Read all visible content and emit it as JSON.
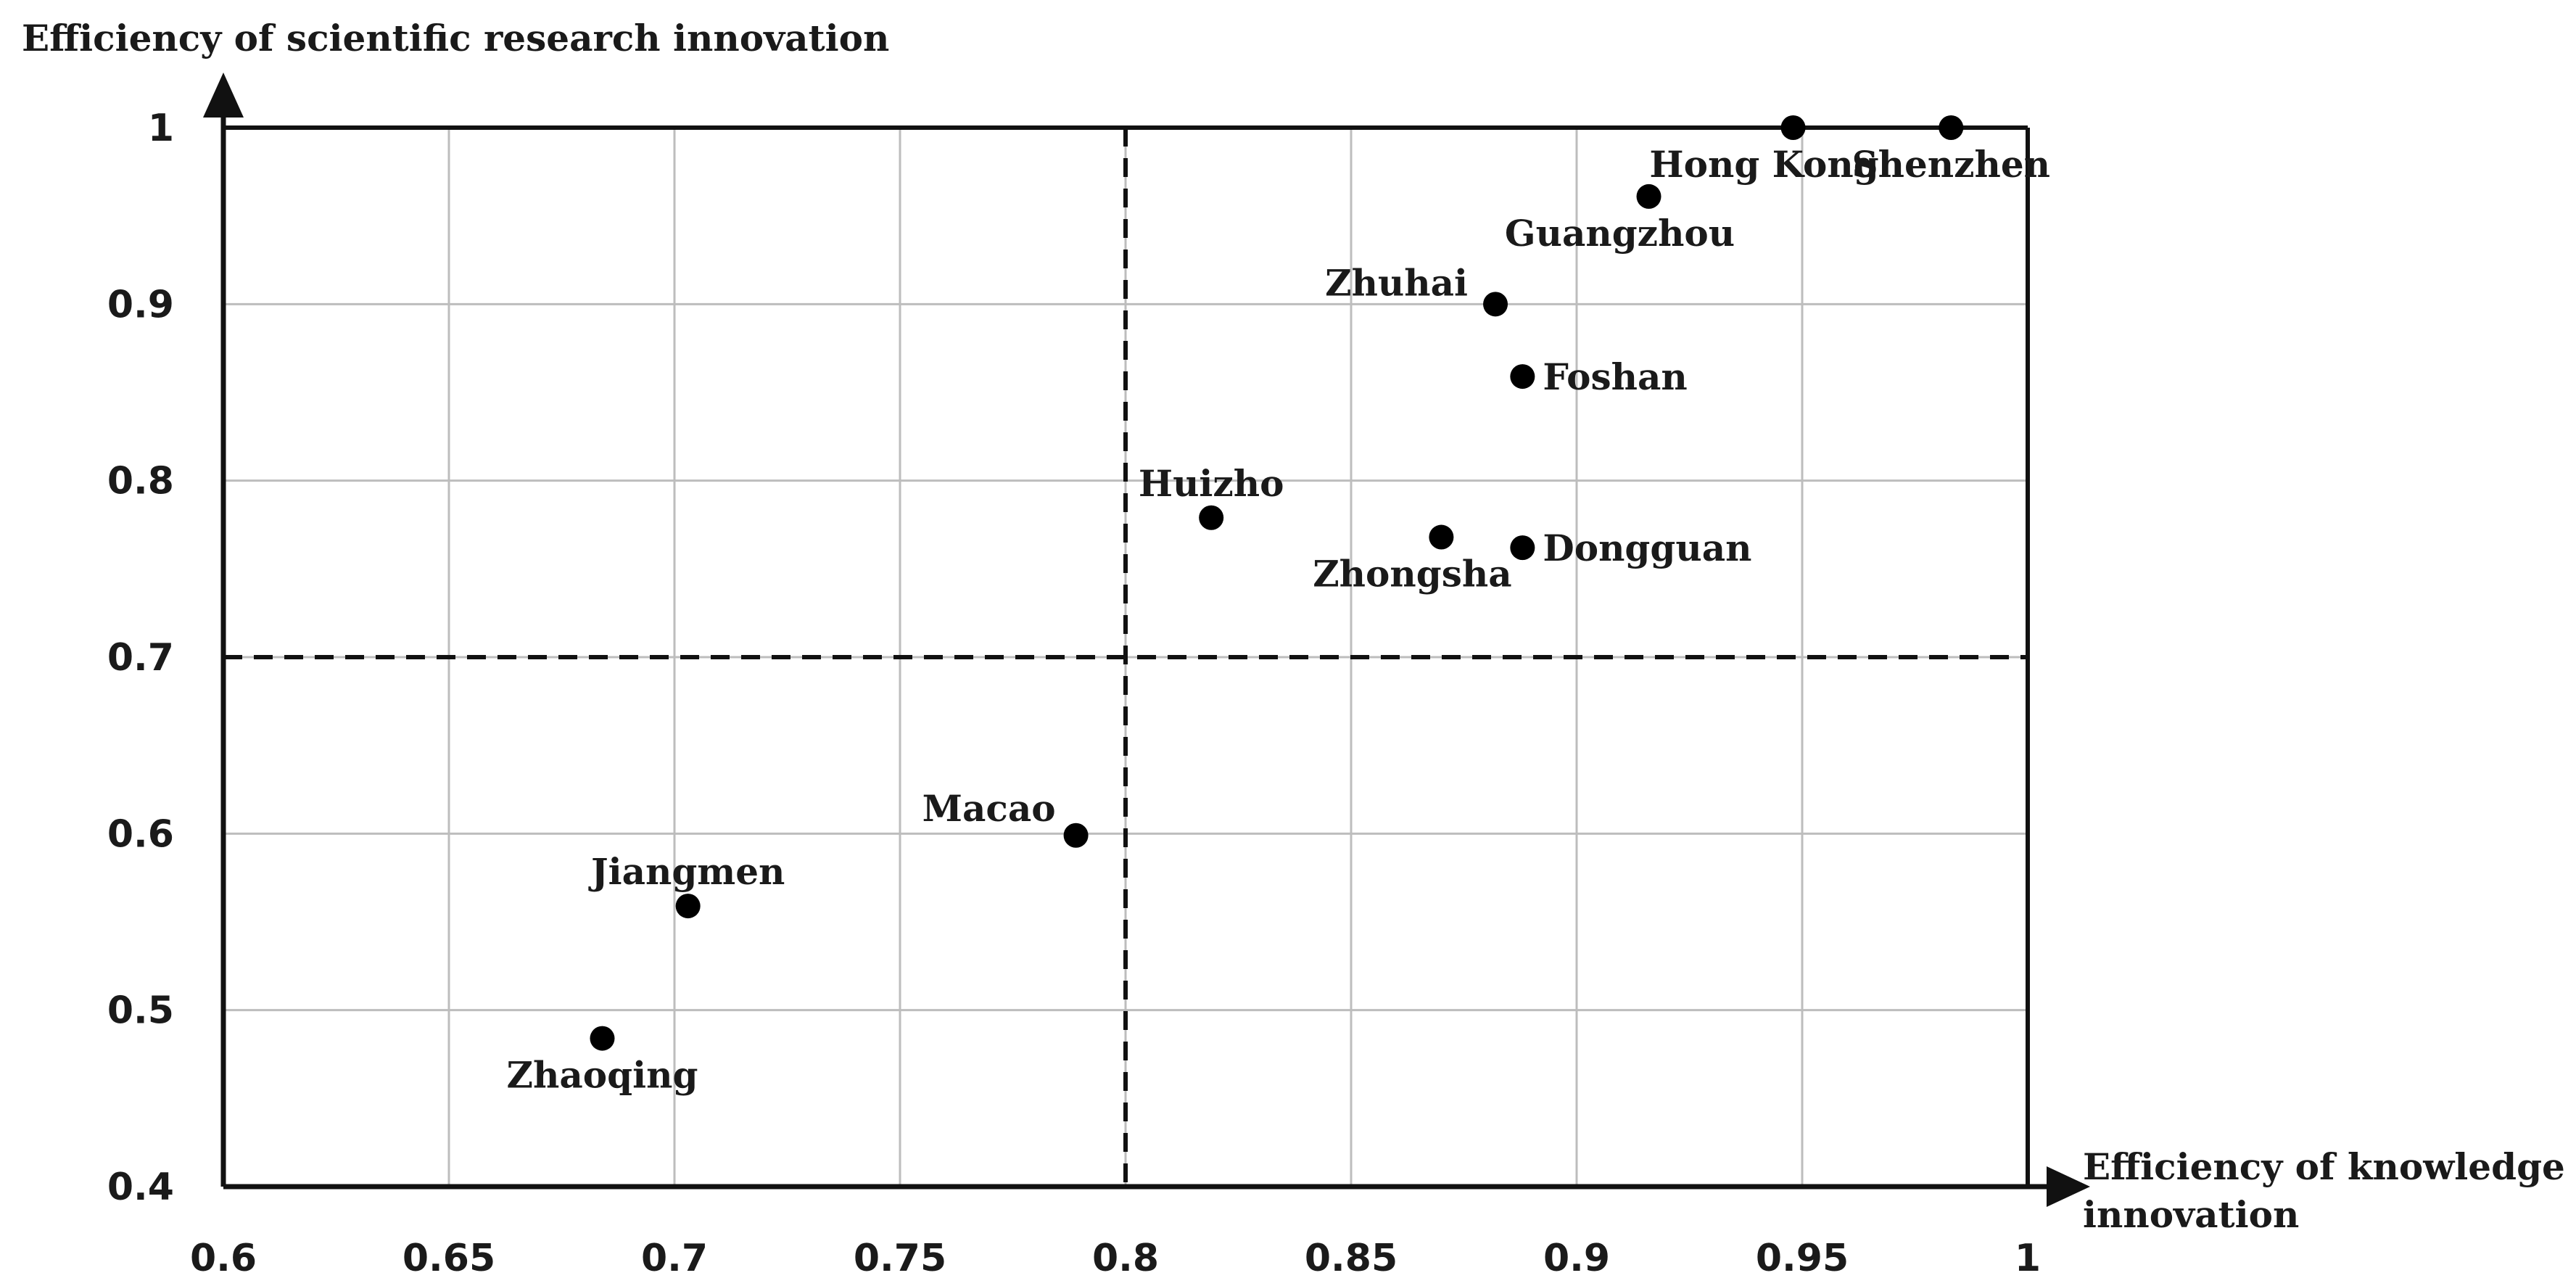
{
  "chart_data": {
    "type": "scatter",
    "title": "",
    "xlabel": [
      "Efficiency of knowledge",
      "innovation"
    ],
    "ylabel": "Efficiency of scientific research innovation",
    "xlim": [
      0.6,
      1.0
    ],
    "ylim": [
      0.4,
      1.0
    ],
    "xticks": [
      "0.6",
      "0.65",
      "0.7",
      "0.75",
      "0.8",
      "0.85",
      "0.9",
      "0.95",
      "1"
    ],
    "yticks": [
      "0.4",
      "0.5",
      "0.6",
      "0.7",
      "0.8",
      "0.9",
      "1"
    ],
    "grid": true,
    "threshold_lines": {
      "x": 0.8,
      "y": 0.7
    },
    "points": [
      {
        "label": "Shenzhen",
        "x": 0.983,
        "y": 1.0,
        "label_pos": "below"
      },
      {
        "label": "Hong Kong",
        "x": 0.948,
        "y": 1.0,
        "label_pos": "below-left"
      },
      {
        "label": "Guangzhou",
        "x": 0.916,
        "y": 0.961,
        "label_pos": "below-left"
      },
      {
        "label": "Zhuhai",
        "x": 0.882,
        "y": 0.9,
        "label_pos": "left"
      },
      {
        "label": "Foshan",
        "x": 0.888,
        "y": 0.859,
        "label_pos": "right"
      },
      {
        "label": "Huizho",
        "x": 0.819,
        "y": 0.779,
        "label_pos": "above"
      },
      {
        "label": "Zhongsha",
        "x": 0.87,
        "y": 0.768,
        "label_pos": "below-left"
      },
      {
        "label": "Dongguan",
        "x": 0.888,
        "y": 0.762,
        "label_pos": "right"
      },
      {
        "label": "Macao",
        "x": 0.789,
        "y": 0.599,
        "label_pos": "left-above"
      },
      {
        "label": "Jiangmen",
        "x": 0.703,
        "y": 0.559,
        "label_pos": "above"
      },
      {
        "label": "Zhaoqing",
        "x": 0.684,
        "y": 0.484,
        "label_pos": "below"
      }
    ]
  }
}
